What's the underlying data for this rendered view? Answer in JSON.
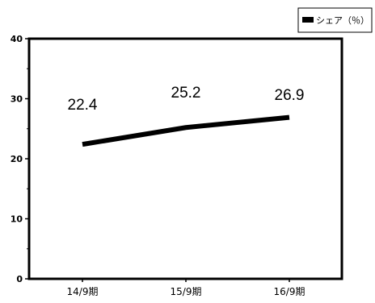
{
  "chart_data": {
    "type": "line",
    "categories": [
      "14/9期",
      "15/9期",
      "16/9期"
    ],
    "series": [
      {
        "name": "シェア（％）",
        "values": [
          22.4,
          25.2,
          26.9
        ],
        "color": "#000000"
      }
    ],
    "data_labels": [
      "22.4",
      "25.2",
      "26.9"
    ],
    "yticks": [
      "0",
      "10",
      "20",
      "30",
      "40"
    ],
    "ylim": [
      0,
      40
    ],
    "legend_position": "top-right",
    "grid": false
  }
}
